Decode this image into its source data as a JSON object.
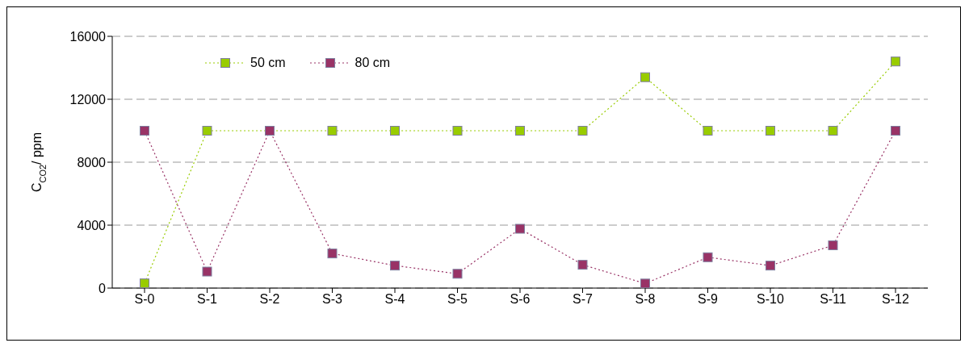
{
  "chart_data": {
    "type": "line",
    "ylabel": "C$_{CO2}$/ ppm",
    "categories": [
      "S-0",
      "S-1",
      "S-2",
      "S-3",
      "S-4",
      "S-5",
      "S-6",
      "S-7",
      "S-8",
      "S-9",
      "S-10",
      "S-11",
      "S-12"
    ],
    "series": [
      {
        "name": "50 cm",
        "color": "#99cc00",
        "values": [
          300,
          10000,
          10000,
          10000,
          10000,
          10000,
          10000,
          10000,
          13400,
          10000,
          10000,
          10000,
          14400
        ]
      },
      {
        "name": "80 cm",
        "color": "#993366",
        "values": [
          10000,
          1050,
          10000,
          2200,
          1430,
          910,
          3770,
          1480,
          290,
          1960,
          1430,
          2720,
          10000
        ]
      }
    ],
    "ylim": [
      0,
      16000
    ],
    "yticks": [
      0,
      4000,
      8000,
      12000,
      16000
    ],
    "grid": "y",
    "legend": "top left",
    "marker": "square",
    "line_style": "dotted"
  }
}
